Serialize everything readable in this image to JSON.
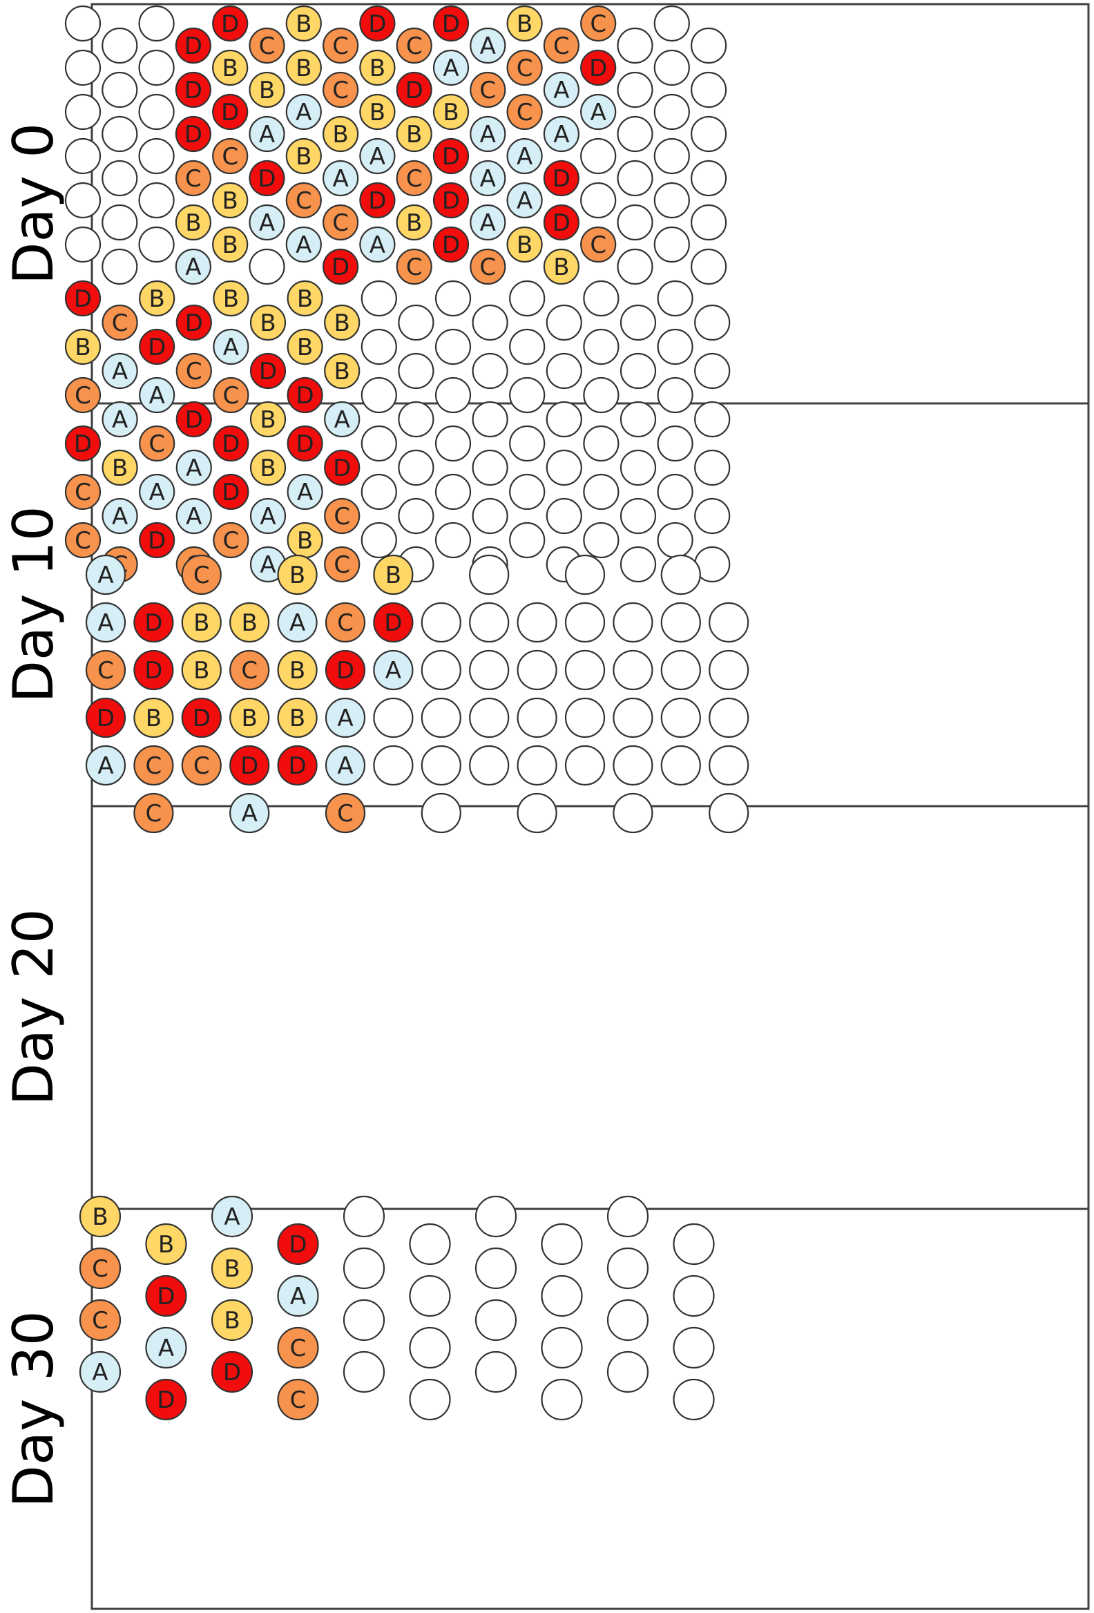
{
  "colors": {
    "A": "#d6eef5",
    "B": "#fed766",
    "C": "#f7934c",
    "D": "#f20d0d",
    "empty": "#ffffff",
    "frame": "#404040"
  },
  "panels": [
    {
      "label": "Day 0",
      "rows": [
        "",
        "",
        "",
        "",
        "",
        "",
        "",
        "",
        "",
        "",
        "",
        "",
        "",
        "",
        "",
        "",
        "",
        "",
        "D",
        "D",
        "D",
        "C",
        "B",
        "A",
        "D",
        "B",
        "D",
        "C",
        "B",
        "B",
        "C",
        "B",
        "A",
        "D",
        "A",
        "",
        "B",
        "B",
        "A",
        "B",
        "C",
        "A",
        "C",
        "C",
        "B",
        "A",
        "C",
        "D",
        "D",
        "B",
        "B",
        "A",
        "D",
        "A",
        "C",
        "D",
        "B",
        "C",
        "B",
        "C",
        "D",
        "A",
        "B",
        "D",
        "D",
        "D",
        "A",
        "C",
        "A",
        "A",
        "A",
        "C",
        "B",
        "C",
        "C",
        "A",
        "A",
        "B",
        "C",
        "A",
        "A",
        "D",
        "D",
        "B",
        "C",
        "D",
        "A",
        "",
        "",
        "C",
        "",
        "",
        "",
        "",
        "",
        "",
        "",
        "",
        "",
        "",
        "",
        "",
        "",
        "",
        "",
        "",
        "",
        ""
      ]
    },
    {
      "label": "Day 10",
      "rows": [
        "D",
        "B",
        "C",
        "D",
        "C",
        "C",
        "C",
        "A",
        "A",
        "B",
        "A",
        "C",
        "B",
        "D",
        "A",
        "C",
        "A",
        "D",
        "D",
        "C",
        "D",
        "A",
        "A",
        "C",
        "B",
        "A",
        "C",
        "D",
        "D",
        "C",
        "B",
        "D",
        "B",
        "B",
        "A",
        "A",
        "B",
        "B",
        "D",
        "D",
        "A",
        "B",
        "B",
        "B",
        "A",
        "D",
        "C",
        "C"
      ]
    },
    {
      "label": "Day 20",
      "rows": [
        "A",
        "A",
        "C",
        "D",
        "A",
        "D",
        "D",
        "B",
        "C",
        "C",
        "C",
        "B",
        "B",
        "D",
        "C",
        "B",
        "C",
        "B",
        "D",
        "A",
        "B",
        "A",
        "B",
        "B",
        "D",
        "C",
        "D",
        "A",
        "A",
        "C",
        "B",
        "D",
        "A"
      ]
    },
    {
      "label": "Day 30",
      "rows": [
        "B",
        "C",
        "C",
        "A",
        "B",
        "D",
        "A",
        "D",
        "A",
        "B",
        "B",
        "D",
        "D",
        "A",
        "C",
        "C"
      ]
    }
  ]
}
